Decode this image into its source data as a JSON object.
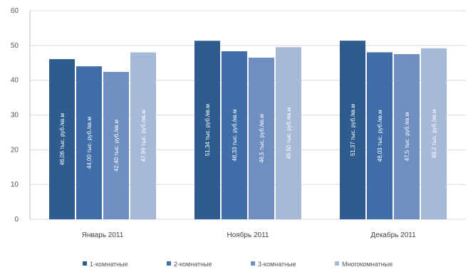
{
  "chart_data": {
    "type": "bar",
    "categories": [
      "Январь 2011",
      "Ноябрь 2011",
      "Декабрь 2011"
    ],
    "ylim": [
      0,
      60
    ],
    "yticks": [
      0,
      10,
      20,
      30,
      40,
      50,
      60
    ],
    "grid": true,
    "legend_position": "bottom",
    "series": [
      {
        "name": "1-комнатные",
        "color": "#2e5c8e",
        "values": [
          46.06,
          51.34,
          51.37
        ],
        "labels": [
          "46,06 тыс. руб./кв.м",
          "51,34 тыс. руб./кв.м",
          "51,37 тыс. руб./кв.м"
        ]
      },
      {
        "name": "2-комнатные",
        "color": "#3f6ea8",
        "values": [
          44.0,
          48.33,
          48.03
        ],
        "labels": [
          "44,00 тыс. руб./кв.м",
          "48,33 тыс. руб./кв.м",
          "48,03 тыс. руб./кв.м"
        ]
      },
      {
        "name": "3-комнатные",
        "color": "#6f8fc0",
        "values": [
          42.4,
          46.5,
          47.5
        ],
        "labels": [
          "42,40 тыс. руб./кв.м",
          "46,5 тыс. руб./кв.м",
          "47,5 тыс. руб./кв.м"
        ]
      },
      {
        "name": "Многокомнатные",
        "color": "#a6b9d6",
        "values": [
          47.99,
          49.5,
          49.2
        ],
        "labels": [
          "47,99 тыс. руб./кв.м",
          "49,50 тыс. руб./кв.м",
          "49,2 тыс. руб./кв.м"
        ]
      }
    ]
  }
}
